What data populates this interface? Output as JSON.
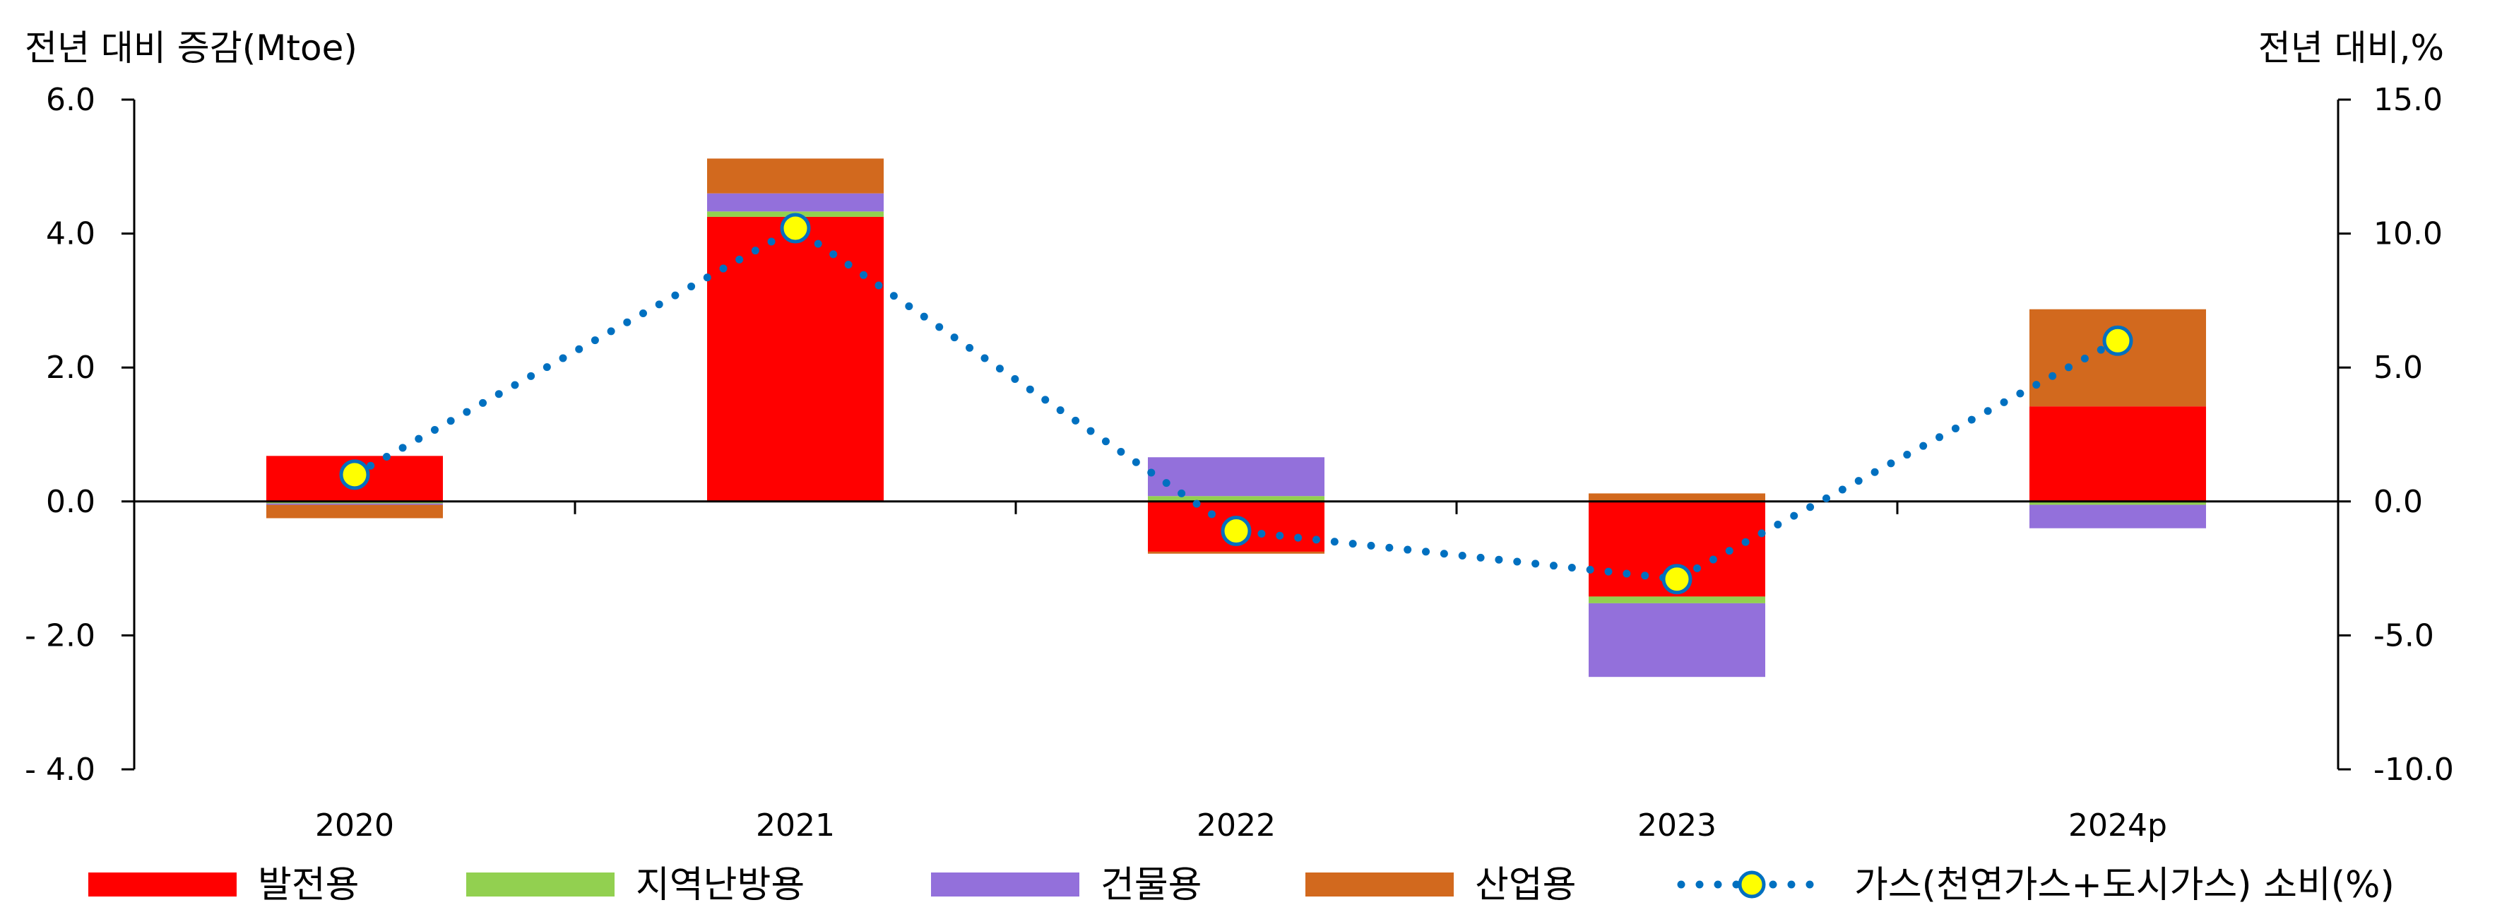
{
  "chart_data": {
    "type": "bar",
    "stacked": true,
    "categories": [
      "2020",
      "2021",
      "2022",
      "2023",
      "2024p"
    ],
    "y_left": {
      "label": "전년 대비 증감(Mtoe)",
      "range": [
        -4.0,
        6.0
      ],
      "ticks": [
        {
          "value": 6.0,
          "label": "6.0"
        },
        {
          "value": 4.0,
          "label": "4.0"
        },
        {
          "value": 2.0,
          "label": "2.0"
        },
        {
          "value": 0.0,
          "label": "0.0"
        },
        {
          "value": -2.0,
          "label": "- 2.0"
        },
        {
          "value": -4.0,
          "label": "- 4.0"
        }
      ]
    },
    "y_right": {
      "label": "전년 대비,%",
      "range": [
        -10.0,
        15.0
      ],
      "ticks": [
        {
          "value": 15.0,
          "label": "15.0"
        },
        {
          "value": 10.0,
          "label": "10.0"
        },
        {
          "value": 5.0,
          "label": "5.0"
        },
        {
          "value": 0.0,
          "label": "0.0"
        },
        {
          "value": -5.0,
          "label": "-5.0"
        },
        {
          "value": -10.0,
          "label": "-10.0"
        }
      ]
    },
    "series": [
      {
        "name": "발전용",
        "color": "#FF0000",
        "values": [
          0.68,
          4.25,
          -0.75,
          -1.42,
          1.42
        ]
      },
      {
        "name": "지역난방용",
        "color": "#92D050",
        "values": [
          -0.03,
          0.08,
          0.08,
          -0.1,
          -0.05
        ]
      },
      {
        "name": "건물용",
        "color": "#9370DB",
        "values": [
          -0.02,
          0.27,
          0.58,
          -1.1,
          -0.35
        ]
      },
      {
        "name": "산업용",
        "color": "#D2691E",
        "values": [
          -0.2,
          0.52,
          -0.03,
          0.12,
          1.45
        ]
      }
    ],
    "line_series": {
      "name": "가스(천연가스+도시가스) 소비(%)",
      "axis": "right",
      "line_color": "#0070C0",
      "marker_color": "#FFFF00",
      "values": [
        1.0,
        10.2,
        -1.1,
        -2.9,
        6.0
      ]
    },
    "legend_position": "bottom",
    "grid": false
  }
}
